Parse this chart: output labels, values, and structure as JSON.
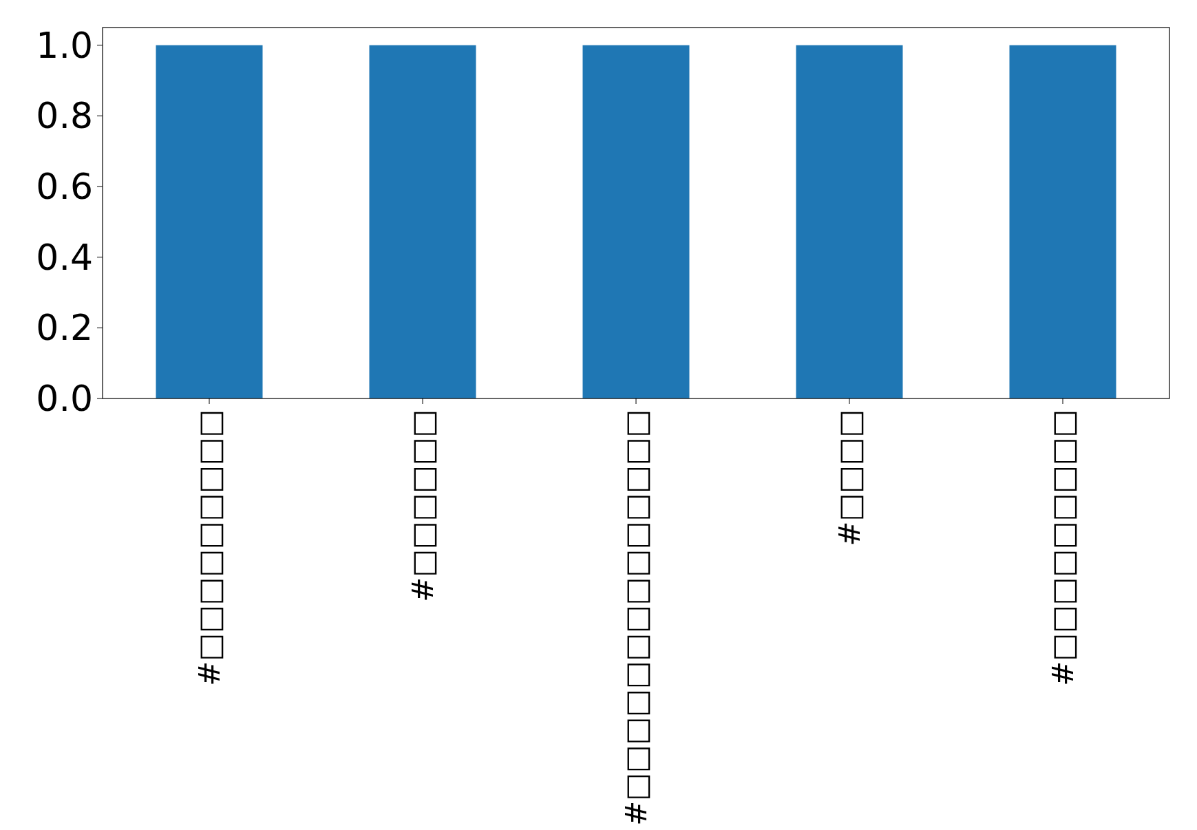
{
  "chart_data": {
    "type": "bar",
    "categories": [
      "#□□□□□□□□□",
      "#□□□□□□",
      "#□□□□□□□□□□□□□□",
      "#□□□□",
      "#□□□□□□□□□"
    ],
    "values": [
      1,
      1,
      1,
      1,
      1
    ],
    "color": "#1f77b4",
    "ylim": [
      0,
      1.05
    ],
    "yticks": [
      {
        "value": 0,
        "label": "0.0"
      },
      {
        "value": 0.2,
        "label": "0.2"
      },
      {
        "value": 0.4,
        "label": "0.4"
      },
      {
        "value": 0.6,
        "label": "0.6"
      },
      {
        "value": 0.8,
        "label": "0.8"
      },
      {
        "value": 1,
        "label": "1.0"
      }
    ],
    "grid": false
  }
}
